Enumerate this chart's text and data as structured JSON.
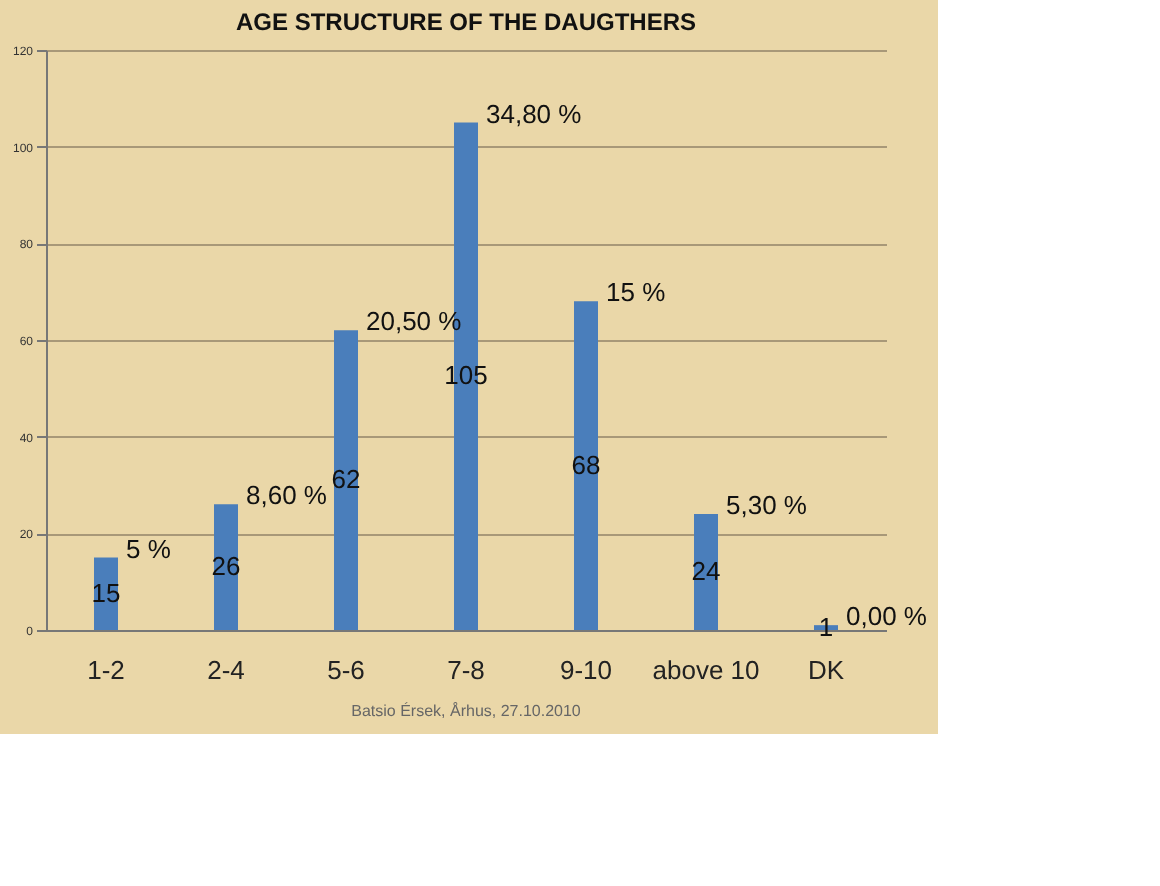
{
  "chart_data": {
    "type": "bar",
    "title": "AGE STRUCTURE OF THE DAUGTHERS",
    "categories": [
      "1-2",
      "2-4",
      "5-6",
      "7-8",
      "9-10",
      "above 10",
      "DK"
    ],
    "values": [
      15,
      26,
      62,
      105,
      68,
      24,
      1
    ],
    "color": "#4a7ebb",
    "data_labels": true,
    "ylim": [
      0,
      120
    ],
    "yticks": [
      0,
      20,
      40,
      60,
      80,
      100,
      120
    ],
    "grid": "y",
    "annotations": [
      {
        "text": "5 %",
        "x": "1-2",
        "y": 15
      },
      {
        "text": "8,60 %",
        "x": "2-4",
        "y": 26
      },
      {
        "text": "20,50 %",
        "x": "5-6",
        "y": 62
      },
      {
        "text": "34,80 %",
        "x": "7-8",
        "y": 105
      },
      {
        "text": "15 %",
        "x": "9-10",
        "y": 68
      },
      {
        "text": "5,30 %",
        "x": "above 10",
        "y": 24
      },
      {
        "text": "0,00 %",
        "x": "DK",
        "y": 1
      },
      "Batsio Érsek, Århus, 27.10.2010"
    ]
  }
}
